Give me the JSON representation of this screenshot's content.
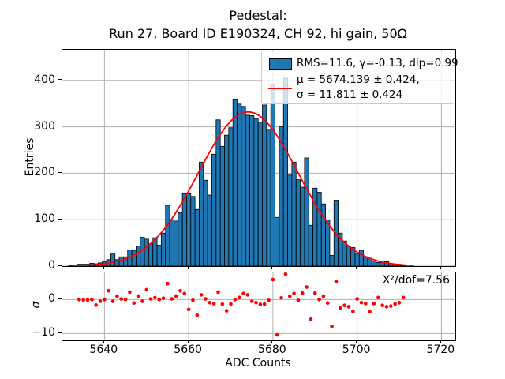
{
  "title": "Pedestal:\nRun 27, Board ID E190324, CH 92, hi gain, 50Ω",
  "axes": {
    "main_ylabel": "Entries",
    "resid_ylabel": "σ",
    "xlabel": "ADC Counts"
  },
  "legend": {
    "hist_label": "RMS=11.6, γ=-0.13, dip=0.99",
    "fit_line1": "μ = 5674.139 ± 0.424,",
    "fit_line2": "σ = 11.811 ± 0.424"
  },
  "annotations": {
    "chi2": "X²/dof=7.56"
  },
  "colors": {
    "bar_fill": "#1f77b4",
    "bar_edge": "#000000",
    "fit_line": "#ff0000",
    "residual_points": "#ff0000",
    "grid": "#b0b0b0"
  },
  "chart_data": [
    {
      "type": "bar",
      "title": "Pedestal: Run 27, Board ID E190324, CH 92, hi gain, 50Ω",
      "xlabel": "",
      "ylabel": "Entries",
      "xlim": [
        5630,
        5723.3
      ],
      "ylim": [
        0,
        466
      ],
      "xticks": [
        5640,
        5660,
        5680,
        5700,
        5720
      ],
      "yticks": [
        0,
        100,
        200,
        300,
        400
      ],
      "grid": true,
      "legend_position": "upper right",
      "bin_start": 5632,
      "bin_width": 1,
      "counts": [
        2,
        1,
        4,
        4,
        4,
        6,
        5,
        7,
        10,
        14,
        26,
        14,
        20,
        20,
        35,
        34,
        43,
        62,
        58,
        48,
        61,
        45,
        71,
        131,
        100,
        97,
        115,
        156,
        156,
        150,
        122,
        224,
        185,
        153,
        241,
        315,
        258,
        282,
        298,
        358,
        349,
        344,
        325,
        324,
        318,
        310,
        347,
        295,
        390,
        105,
        300,
        405,
        196,
        224,
        186,
        170,
        233,
        88,
        168,
        159,
        134,
        99,
        23,
        142,
        71,
        54,
        43,
        40,
        26,
        34,
        20,
        17,
        11,
        8,
        8,
        10,
        5,
        3,
        4,
        2
      ],
      "fit": {
        "shape": "gaussian",
        "mu": 5674.139,
        "mu_err": 0.424,
        "sigma": 11.811,
        "sigma_err": 0.424,
        "amplitude": 332,
        "x_range": [
          5632.5,
          5713.5
        ]
      },
      "stats": {
        "rms": 11.6,
        "gamma": -0.13,
        "dip": 0.99
      }
    },
    {
      "type": "scatter",
      "xlabel": "ADC Counts",
      "ylabel": "σ",
      "xlim": [
        5630,
        5723.3
      ],
      "ylim": [
        -12,
        8
      ],
      "xticks": [
        5640,
        5660,
        5680,
        5700,
        5720
      ],
      "yticks": [
        0,
        -10
      ],
      "grid": true,
      "chi2_per_dof": 7.56,
      "points": [
        [
          5634,
          0
        ],
        [
          5635,
          -0.1
        ],
        [
          5636,
          -0.1
        ],
        [
          5637,
          0
        ],
        [
          5638,
          -1.6
        ],
        [
          5639,
          -0.5
        ],
        [
          5640,
          0
        ],
        [
          5641,
          2.6
        ],
        [
          5642,
          -0.5
        ],
        [
          5643,
          1.0
        ],
        [
          5644,
          0.2
        ],
        [
          5645,
          0
        ],
        [
          5646,
          2.2
        ],
        [
          5647,
          -1.0
        ],
        [
          5648,
          1.0
        ],
        [
          5649,
          -0.5
        ],
        [
          5650,
          2.9
        ],
        [
          5651,
          0.2
        ],
        [
          5652,
          0.6
        ],
        [
          5653,
          0
        ],
        [
          5654,
          0.4
        ],
        [
          5655,
          4.7
        ],
        [
          5656,
          0.2
        ],
        [
          5657,
          1.0
        ],
        [
          5658,
          2.6
        ],
        [
          5659,
          1.8
        ],
        [
          5660,
          -2.9
        ],
        [
          5661,
          -0.2
        ],
        [
          5662,
          -4.6
        ],
        [
          5663,
          1.4
        ],
        [
          5664,
          0.2
        ],
        [
          5665,
          -0.9
        ],
        [
          5666,
          -1.2
        ],
        [
          5667,
          2.2
        ],
        [
          5668,
          -1.3
        ],
        [
          5669,
          -3.3
        ],
        [
          5670,
          -1.3
        ],
        [
          5671,
          0
        ],
        [
          5672,
          0.6
        ],
        [
          5673,
          1.8
        ],
        [
          5674,
          1.4
        ],
        [
          5675,
          -0.5
        ],
        [
          5676,
          -0.9
        ],
        [
          5677,
          -1.4
        ],
        [
          5678,
          -1.3
        ],
        [
          5679,
          -0.2
        ],
        [
          5680,
          5.9
        ],
        [
          5681,
          -10.4
        ],
        [
          5682,
          0.5
        ],
        [
          5683,
          7.5
        ],
        [
          5684,
          1.0
        ],
        [
          5685,
          1.8
        ],
        [
          5686,
          -0.2
        ],
        [
          5687,
          1.9
        ],
        [
          5688,
          3.7
        ],
        [
          5689,
          -5.8
        ],
        [
          5690,
          1.9
        ],
        [
          5691,
          0
        ],
        [
          5692,
          1.0
        ],
        [
          5693,
          -1.0
        ],
        [
          5694,
          -7.9
        ],
        [
          5695,
          5.3
        ],
        [
          5696,
          -2.5
        ],
        [
          5697,
          -1.7
        ],
        [
          5698,
          -2.1
        ],
        [
          5699,
          -3.5
        ],
        [
          5700,
          0.2
        ],
        [
          5701,
          -0.9
        ],
        [
          5702,
          -1.2
        ],
        [
          5703,
          -3.6
        ],
        [
          5704,
          -1.2
        ],
        [
          5705,
          0.6
        ],
        [
          5706,
          -1.7
        ],
        [
          5707,
          -2.1
        ],
        [
          5708,
          -1.9
        ],
        [
          5709,
          -1.3
        ],
        [
          5710,
          -0.9
        ],
        [
          5711,
          0.6
        ]
      ]
    }
  ]
}
